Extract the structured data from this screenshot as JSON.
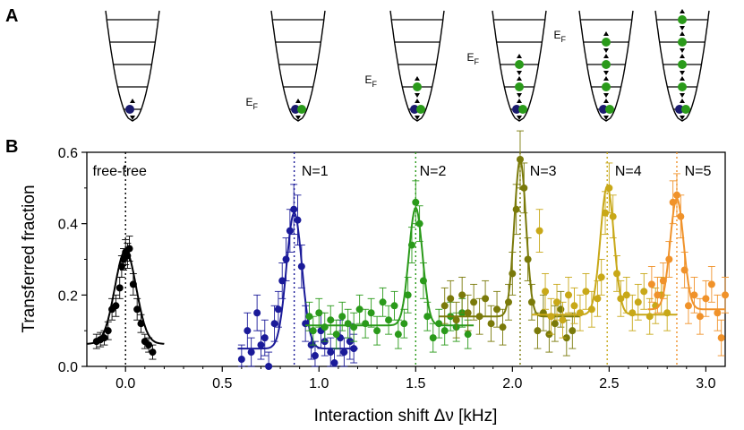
{
  "panel_a": {
    "label": "A",
    "traps": [
      {
        "filled": 1,
        "fermi_label": ""
      },
      {
        "filled": 1,
        "fermi_label": "E_F"
      },
      {
        "filled": 2,
        "fermi_label": "E_F"
      },
      {
        "filled": 3,
        "fermi_label": "E_F"
      },
      {
        "filled": 4,
        "fermi_label": "E_F"
      },
      {
        "filled": 5,
        "fermi_label": ""
      }
    ],
    "colors": {
      "ground": "#1a1a6e",
      "excited": "#2a9a1a",
      "trap": "#000000"
    }
  },
  "chart_data": {
    "type": "scatter",
    "panel_label": "B",
    "xlabel": "Interaction shift  Δν [kHz]",
    "ylabel": "Transferred fraction",
    "xlim": [
      -0.2,
      3.1
    ],
    "ylim": [
      0.0,
      0.6
    ],
    "xticks": [
      0.0,
      0.5,
      1.0,
      1.5,
      2.0,
      2.5,
      3.0
    ],
    "xtick_labels": [
      "0.0",
      "0.5",
      "1.0",
      "1.5",
      "2.0",
      "2.5",
      "3.0"
    ],
    "yticks": [
      0.0,
      0.2,
      0.4,
      0.6
    ],
    "ytick_labels": [
      "0.0",
      "0.2",
      "0.4",
      "0.6"
    ],
    "series": [
      {
        "name": "free-free",
        "label": "free-free",
        "label_x": -0.17,
        "color": "#000000",
        "peak": 0.0,
        "fit": {
          "baseline": 0.063,
          "amplitude": 0.262,
          "width": 0.055,
          "xmin": -0.2,
          "xmax": 0.2
        },
        "points": [
          [
            -0.15,
            0.07,
            0.02
          ],
          [
            -0.13,
            0.075,
            0.02
          ],
          [
            -0.11,
            0.08,
            0.02
          ],
          [
            -0.09,
            0.1,
            0.025
          ],
          [
            -0.07,
            0.16,
            0.03
          ],
          [
            -0.05,
            0.17,
            0.03
          ],
          [
            -0.03,
            0.22,
            0.03
          ],
          [
            -0.02,
            0.28,
            0.03
          ],
          [
            -0.01,
            0.3,
            0.03
          ],
          [
            0.0,
            0.32,
            0.035
          ],
          [
            0.01,
            0.31,
            0.035
          ],
          [
            0.02,
            0.33,
            0.035
          ],
          [
            0.04,
            0.23,
            0.03
          ],
          [
            0.06,
            0.16,
            0.03
          ],
          [
            0.08,
            0.12,
            0.025
          ],
          [
            0.1,
            0.07,
            0.02
          ],
          [
            0.12,
            0.06,
            0.02
          ],
          [
            0.14,
            0.04,
            0.02
          ]
        ]
      },
      {
        "name": "N=1",
        "label": "N=1",
        "label_x": 0.91,
        "color": "#1a1a99",
        "peak": 0.872,
        "fit": {
          "baseline": 0.05,
          "amplitude": 0.38,
          "width": 0.04,
          "xmin": 0.58,
          "xmax": 1.2
        },
        "points": [
          [
            0.6,
            0.02,
            0.04
          ],
          [
            0.63,
            0.1,
            0.05
          ],
          [
            0.65,
            0.04,
            0.04
          ],
          [
            0.68,
            0.15,
            0.05
          ],
          [
            0.7,
            0.06,
            0.04
          ],
          [
            0.72,
            0.08,
            0.05
          ],
          [
            0.74,
            0.0,
            0.04
          ],
          [
            0.77,
            0.12,
            0.05
          ],
          [
            0.79,
            0.16,
            0.05
          ],
          [
            0.81,
            0.24,
            0.05
          ],
          [
            0.83,
            0.3,
            0.06
          ],
          [
            0.85,
            0.38,
            0.06
          ],
          [
            0.87,
            0.44,
            0.07
          ],
          [
            0.89,
            0.41,
            0.07
          ],
          [
            0.91,
            0.28,
            0.06
          ],
          [
            0.93,
            0.12,
            0.05
          ],
          [
            0.96,
            0.06,
            0.04
          ],
          [
            0.98,
            0.03,
            0.04
          ],
          [
            1.01,
            0.1,
            0.05
          ],
          [
            1.03,
            0.07,
            0.04
          ],
          [
            1.06,
            0.04,
            0.04
          ],
          [
            1.08,
            0.01,
            0.04
          ],
          [
            1.11,
            0.08,
            0.05
          ],
          [
            1.13,
            0.04,
            0.04
          ],
          [
            1.16,
            0.07,
            0.05
          ],
          [
            1.18,
            0.05,
            0.04
          ]
        ]
      },
      {
        "name": "N=2",
        "label": "N=2",
        "label_x": 1.52,
        "color": "#2a9a1a",
        "peak": 1.5,
        "fit": {
          "baseline": 0.115,
          "amplitude": 0.33,
          "width": 0.035,
          "xmin": 0.93,
          "xmax": 1.8
        },
        "points": [
          [
            0.95,
            0.14,
            0.04
          ],
          [
            0.97,
            0.1,
            0.04
          ],
          [
            1.0,
            0.15,
            0.04
          ],
          [
            1.03,
            0.11,
            0.04
          ],
          [
            1.06,
            0.13,
            0.04
          ],
          [
            1.09,
            0.09,
            0.04
          ],
          [
            1.12,
            0.14,
            0.04
          ],
          [
            1.15,
            0.12,
            0.04
          ],
          [
            1.18,
            0.11,
            0.04
          ],
          [
            1.21,
            0.16,
            0.04
          ],
          [
            1.24,
            0.12,
            0.04
          ],
          [
            1.27,
            0.15,
            0.04
          ],
          [
            1.3,
            0.1,
            0.04
          ],
          [
            1.33,
            0.18,
            0.04
          ],
          [
            1.36,
            0.13,
            0.04
          ],
          [
            1.39,
            0.17,
            0.04
          ],
          [
            1.41,
            0.09,
            0.04
          ],
          [
            1.44,
            0.12,
            0.04
          ],
          [
            1.46,
            0.2,
            0.05
          ],
          [
            1.48,
            0.34,
            0.05
          ],
          [
            1.5,
            0.46,
            0.06
          ],
          [
            1.52,
            0.4,
            0.05
          ],
          [
            1.54,
            0.24,
            0.05
          ],
          [
            1.56,
            0.14,
            0.04
          ],
          [
            1.59,
            0.08,
            0.04
          ],
          [
            1.62,
            0.12,
            0.04
          ],
          [
            1.65,
            0.1,
            0.04
          ],
          [
            1.68,
            0.14,
            0.04
          ],
          [
            1.71,
            0.11,
            0.04
          ],
          [
            1.74,
            0.15,
            0.04
          ],
          [
            1.77,
            0.09,
            0.04
          ]
        ]
      },
      {
        "name": "N=3",
        "label": "N=3",
        "label_x": 2.09,
        "color": "#7a7a0a",
        "peak": 2.04,
        "fit": {
          "baseline": 0.14,
          "amplitude": 0.44,
          "width": 0.03,
          "xmin": 1.62,
          "xmax": 2.35
        },
        "points": [
          [
            1.65,
            0.17,
            0.05
          ],
          [
            1.68,
            0.19,
            0.05
          ],
          [
            1.71,
            0.13,
            0.05
          ],
          [
            1.74,
            0.2,
            0.05
          ],
          [
            1.77,
            0.15,
            0.05
          ],
          [
            1.8,
            0.18,
            0.05
          ],
          [
            1.83,
            0.14,
            0.05
          ],
          [
            1.86,
            0.19,
            0.05
          ],
          [
            1.89,
            0.12,
            0.05
          ],
          [
            1.92,
            0.16,
            0.05
          ],
          [
            1.95,
            0.11,
            0.05
          ],
          [
            1.98,
            0.18,
            0.05
          ],
          [
            2.0,
            0.26,
            0.06
          ],
          [
            2.02,
            0.44,
            0.07
          ],
          [
            2.04,
            0.58,
            0.08
          ],
          [
            2.06,
            0.5,
            0.07
          ],
          [
            2.08,
            0.3,
            0.06
          ],
          [
            2.1,
            0.18,
            0.05
          ],
          [
            2.13,
            0.1,
            0.05
          ],
          [
            2.16,
            0.15,
            0.05
          ],
          [
            2.19,
            0.09,
            0.05
          ],
          [
            2.22,
            0.12,
            0.05
          ],
          [
            2.25,
            0.16,
            0.05
          ],
          [
            2.28,
            0.08,
            0.05
          ],
          [
            2.31,
            0.1,
            0.05
          ]
        ]
      },
      {
        "name": "N=4",
        "label": "N=4",
        "label_x": 2.53,
        "color": "#c8a818",
        "peak": 2.49,
        "fit": {
          "baseline": 0.145,
          "amplitude": 0.36,
          "width": 0.035,
          "xmin": 2.1,
          "xmax": 2.85
        },
        "points": [
          [
            2.14,
            0.38,
            0.06
          ],
          [
            2.17,
            0.21,
            0.05
          ],
          [
            2.2,
            0.14,
            0.05
          ],
          [
            2.23,
            0.18,
            0.05
          ],
          [
            2.26,
            0.13,
            0.05
          ],
          [
            2.29,
            0.2,
            0.05
          ],
          [
            2.32,
            0.17,
            0.05
          ],
          [
            2.35,
            0.15,
            0.05
          ],
          [
            2.38,
            0.21,
            0.05
          ],
          [
            2.41,
            0.16,
            0.05
          ],
          [
            2.44,
            0.19,
            0.05
          ],
          [
            2.46,
            0.25,
            0.05
          ],
          [
            2.48,
            0.43,
            0.06
          ],
          [
            2.5,
            0.5,
            0.07
          ],
          [
            2.52,
            0.42,
            0.06
          ],
          [
            2.54,
            0.26,
            0.05
          ],
          [
            2.56,
            0.19,
            0.05
          ],
          [
            2.59,
            0.2,
            0.05
          ],
          [
            2.62,
            0.15,
            0.05
          ],
          [
            2.65,
            0.18,
            0.05
          ],
          [
            2.68,
            0.21,
            0.05
          ],
          [
            2.71,
            0.14,
            0.05
          ],
          [
            2.74,
            0.17,
            0.05
          ],
          [
            2.77,
            0.2,
            0.05
          ],
          [
            2.8,
            0.15,
            0.05
          ]
        ]
      },
      {
        "name": "N=5",
        "label": "N=5",
        "label_x": 2.89,
        "color": "#f0922a",
        "peak": 2.85,
        "fit": {
          "baseline": 0.16,
          "amplitude": 0.31,
          "width": 0.035,
          "xmin": 2.7,
          "xmax": 3.1
        },
        "points": [
          [
            2.72,
            0.23,
            0.05
          ],
          [
            2.75,
            0.2,
            0.05
          ],
          [
            2.78,
            0.24,
            0.05
          ],
          [
            2.81,
            0.3,
            0.05
          ],
          [
            2.83,
            0.46,
            0.06
          ],
          [
            2.85,
            0.48,
            0.06
          ],
          [
            2.87,
            0.42,
            0.06
          ],
          [
            2.89,
            0.27,
            0.05
          ],
          [
            2.91,
            0.17,
            0.05
          ],
          [
            2.94,
            0.2,
            0.05
          ],
          [
            2.97,
            0.14,
            0.05
          ],
          [
            3.0,
            0.19,
            0.05
          ],
          [
            3.03,
            0.23,
            0.05
          ],
          [
            3.06,
            0.15,
            0.05
          ],
          [
            3.08,
            0.08,
            0.05
          ],
          [
            3.1,
            0.2,
            0.05
          ]
        ]
      }
    ]
  }
}
